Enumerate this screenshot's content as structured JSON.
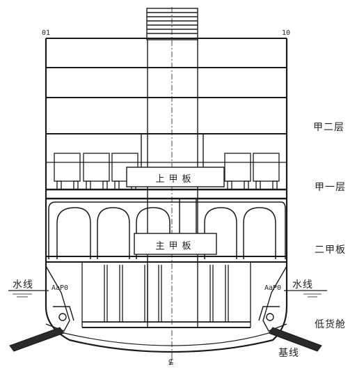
{
  "labels": {
    "deck_two_tier": "甲二层",
    "deck_one_tier": "甲一层",
    "second_deck": "二甲板",
    "lower_hold": "低货舱",
    "baseline": "基线",
    "waterline_left": "水线",
    "waterline_right": "水线",
    "upper_deck": "上甲板",
    "main_deck": "主甲板",
    "centerline_mark": "⊈",
    "corner_mark_left": "01",
    "corner_mark_right": "10",
    "tank_mark_left": "AaP0",
    "tank_mark_right": "AaP0"
  },
  "colors": {
    "line": "#1a1a1a",
    "background": "#ffffff"
  }
}
